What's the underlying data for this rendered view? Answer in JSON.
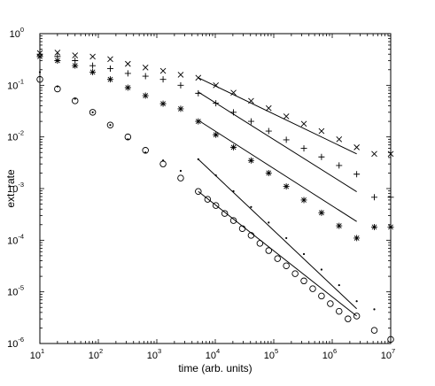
{
  "chart_data": {
    "type": "scatter",
    "title": "",
    "xlabel": "time (arb. units)",
    "ylabel": "ext. rate",
    "xscale": "log",
    "yscale": "log",
    "xlim": [
      10,
      10000000
    ],
    "ylim": [
      1e-06,
      1
    ],
    "grid": false,
    "legend": "none",
    "x_ticks": [
      {
        "base": "10",
        "exp": "1"
      },
      {
        "base": "10",
        "exp": "2"
      },
      {
        "base": "10",
        "exp": "3"
      },
      {
        "base": "10",
        "exp": "4"
      },
      {
        "base": "10",
        "exp": "5"
      },
      {
        "base": "10",
        "exp": "6"
      },
      {
        "base": "10",
        "exp": "7"
      }
    ],
    "y_ticks": [
      {
        "base": "10",
        "exp": "-6"
      },
      {
        "base": "10",
        "exp": "-5"
      },
      {
        "base": "10",
        "exp": "-4"
      },
      {
        "base": "10",
        "exp": "-3"
      },
      {
        "base": "10",
        "exp": "-2"
      },
      {
        "base": "10",
        "exp": "-1"
      },
      {
        "base": "10",
        "exp": "0"
      }
    ],
    "series": [
      {
        "marker": "x",
        "color": "#000000",
        "x": [
          10,
          20,
          40,
          80,
          160,
          320,
          640,
          1280,
          2560,
          5120,
          10240,
          20480,
          40960,
          81920,
          163840,
          327680,
          655360,
          1310720,
          2621440,
          5242880,
          10000000
        ],
        "y": [
          0.42,
          0.43,
          0.38,
          0.36,
          0.32,
          0.26,
          0.22,
          0.19,
          0.16,
          0.14,
          0.1,
          0.072,
          0.05,
          0.036,
          0.025,
          0.018,
          0.013,
          0.009,
          0.0063,
          0.0047,
          0.0047
        ]
      },
      {
        "marker": "+",
        "color": "#000000",
        "x": [
          10,
          20,
          40,
          80,
          160,
          320,
          640,
          1280,
          2560,
          5120,
          10240,
          20480,
          40960,
          81920,
          163840,
          327680,
          655360,
          1310720,
          2621440,
          5242880,
          10000000
        ],
        "y": [
          0.4,
          0.36,
          0.3,
          0.24,
          0.21,
          0.17,
          0.15,
          0.13,
          0.1,
          0.07,
          0.045,
          0.03,
          0.02,
          0.013,
          0.0088,
          0.006,
          0.0041,
          0.0028,
          0.0019,
          0.00068,
          0.00068
        ]
      },
      {
        "marker": "*",
        "color": "#000000",
        "x": [
          10,
          20,
          40,
          80,
          160,
          320,
          640,
          1280,
          2560,
          5120,
          10240,
          20480,
          40960,
          81920,
          163840,
          327680,
          655360,
          1310720,
          2621440,
          5242880,
          10000000
        ],
        "y": [
          0.36,
          0.3,
          0.24,
          0.18,
          0.13,
          0.09,
          0.063,
          0.044,
          0.035,
          0.02,
          0.011,
          0.0063,
          0.0035,
          0.002,
          0.0011,
          0.0006,
          0.00034,
          0.00019,
          0.00011,
          0.00018,
          0.00018
        ]
      },
      {
        "marker": ".",
        "color": "#000000",
        "x": [
          10,
          20,
          40,
          80,
          160,
          320,
          640,
          1280,
          2560,
          5120,
          10240,
          20480,
          40960,
          81920,
          163840,
          327680,
          655360,
          1310720,
          2621440,
          5242880
        ],
        "y": [
          0.18,
          0.095,
          0.055,
          0.03,
          0.017,
          0.009,
          0.005,
          0.0035,
          0.0022,
          0.0037,
          0.0018,
          0.00089,
          0.00044,
          0.00022,
          0.00011,
          5.4e-05,
          2.7e-05,
          1.35e-05,
          6.6e-06,
          4.6e-06
        ]
      },
      {
        "marker": "o",
        "color": "#000000",
        "x": [
          10,
          20,
          40,
          80,
          160,
          320,
          640,
          1280,
          2560,
          5120,
          7400,
          10240,
          14500,
          20480,
          29000,
          40960,
          58000,
          81920,
          116000,
          163840,
          232000,
          327680,
          464000,
          655360,
          928000,
          1310720,
          1860000,
          2621440,
          5242880,
          10000000
        ],
        "y": [
          0.13,
          0.085,
          0.05,
          0.03,
          0.017,
          0.01,
          0.0055,
          0.003,
          0.0016,
          0.00088,
          0.00062,
          0.00047,
          0.00033,
          0.00024,
          0.000168,
          0.000124,
          8.7e-05,
          6.3e-05,
          4.4e-05,
          3.2e-05,
          2.25e-05,
          1.63e-05,
          1.15e-05,
          8.3e-06,
          5.9e-06,
          4.2e-06,
          3e-06,
          3.4e-06,
          1.8e-06,
          1.2e-06
        ]
      }
    ],
    "fit_lines": [
      {
        "color": "#000000",
        "x": [
          5120,
          2621440
        ],
        "y": [
          0.14,
          0.0047
        ]
      },
      {
        "color": "#000000",
        "x": [
          5120,
          2621440
        ],
        "y": [
          0.074,
          0.00087
        ]
      },
      {
        "color": "#000000",
        "x": [
          5120,
          2621440
        ],
        "y": [
          0.021,
          0.00023
        ]
      },
      {
        "color": "#000000",
        "x": [
          5120,
          2621440
        ],
        "y": [
          0.0037,
          4.7e-06
        ]
      },
      {
        "color": "#000000",
        "x": [
          5120,
          2621440
        ],
        "y": [
          0.00088,
          3.4e-06
        ]
      }
    ]
  }
}
